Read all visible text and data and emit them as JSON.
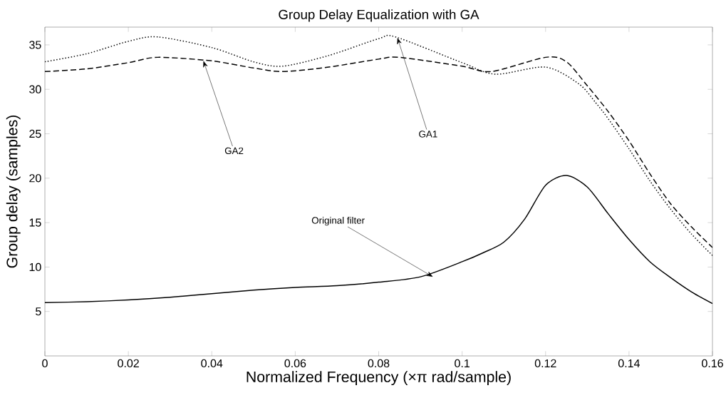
{
  "chart_data": {
    "type": "line",
    "title": "Group Delay Equalization with GA",
    "xlabel": "Normalized Frequency (×π rad/sample)",
    "ylabel": "Group delay (samples)",
    "xlim": [
      0,
      0.16
    ],
    "ylim": [
      0,
      37
    ],
    "xticks": [
      0,
      0.02,
      0.04,
      0.06,
      0.08,
      0.1,
      0.12,
      0.14,
      0.16
    ],
    "yticks": [
      5,
      10,
      15,
      20,
      25,
      30,
      35
    ],
    "series": [
      {
        "color": "#000000",
        "line_style": "dotted",
        "x": [
          0,
          0.01,
          0.02,
          0.027,
          0.04,
          0.05,
          0.057,
          0.068,
          0.08,
          0.084,
          0.1,
          0.108,
          0.12,
          0.128,
          0.132,
          0.135,
          0.14,
          0.145,
          0.15,
          0.155,
          0.16
        ],
        "values": [
          33.1,
          34.0,
          35.4,
          35.9,
          34.7,
          33.1,
          32.6,
          33.8,
          35.7,
          35.9,
          33.0,
          31.7,
          32.5,
          30.6,
          28.5,
          26.7,
          23.3,
          19.7,
          16.5,
          13.7,
          11.3
        ]
      },
      {
        "color": "#000000",
        "line_style": "dashed",
        "x": [
          0,
          0.01,
          0.02,
          0.027,
          0.04,
          0.05,
          0.057,
          0.068,
          0.08,
          0.085,
          0.1,
          0.107,
          0.12,
          0.125,
          0.13,
          0.135,
          0.14,
          0.145,
          0.15,
          0.155,
          0.16
        ],
        "values": [
          32.0,
          32.3,
          33.0,
          33.6,
          33.2,
          32.4,
          32.0,
          32.5,
          33.4,
          33.6,
          32.6,
          32.0,
          33.6,
          33.1,
          30.4,
          27.5,
          24.2,
          20.5,
          17.1,
          14.5,
          12.2
        ]
      },
      {
        "color": "#000000",
        "line_style": "solid",
        "x": [
          0,
          0.01,
          0.02,
          0.03,
          0.04,
          0.05,
          0.06,
          0.07,
          0.08,
          0.09,
          0.1,
          0.105,
          0.11,
          0.115,
          0.12,
          0.125,
          0.13,
          0.135,
          0.14,
          0.145,
          0.15,
          0.155,
          0.16
        ],
        "values": [
          6.0,
          6.1,
          6.3,
          6.6,
          7.0,
          7.4,
          7.7,
          7.9,
          8.3,
          8.9,
          10.6,
          11.6,
          12.8,
          15.4,
          19.2,
          20.3,
          19.0,
          16.0,
          13.1,
          10.6,
          8.8,
          7.2,
          5.9
        ]
      }
    ],
    "annotations": [
      {
        "text": "GA2",
        "x": 0.038,
        "y": 33.2
      },
      {
        "text": "GA1",
        "x": 0.0845,
        "y": 35.8
      },
      {
        "text": "Original filter",
        "x": 0.093,
        "y": 8.9
      }
    ]
  }
}
